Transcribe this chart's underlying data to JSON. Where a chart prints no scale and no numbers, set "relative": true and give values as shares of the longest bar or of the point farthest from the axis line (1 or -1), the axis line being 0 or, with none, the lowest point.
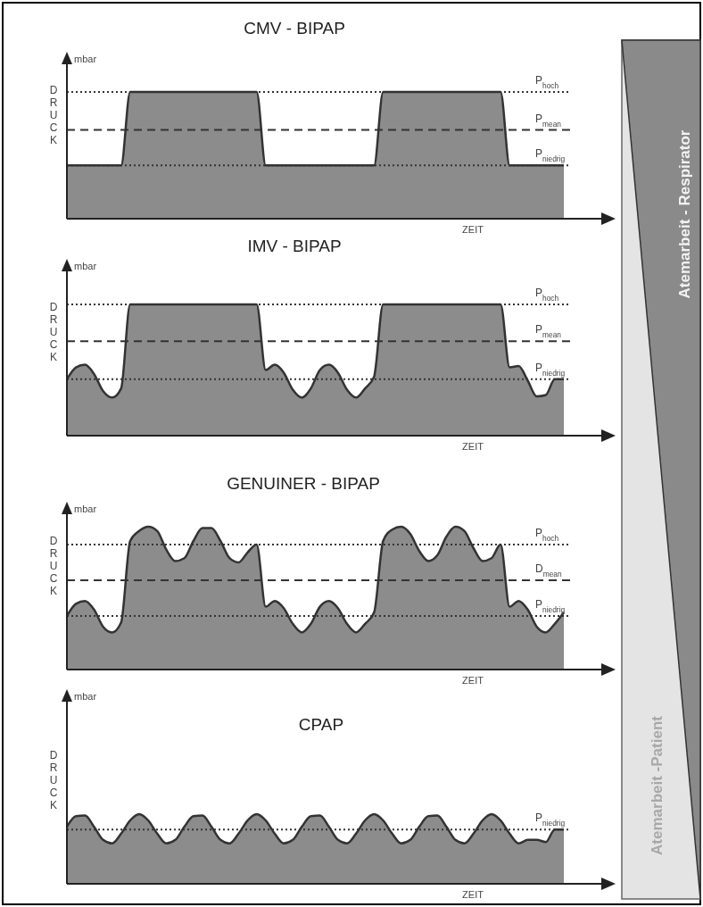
{
  "chart_data": [
    {
      "type": "area",
      "title": "CMV - BIPAP",
      "xlabel": "ZEIT",
      "ylabel": "DRUCK",
      "annotations": [
        "mbar"
      ],
      "relative": true,
      "categories": [
        null,
        null,
        null,
        null,
        null,
        null,
        null,
        null,
        null,
        null,
        null,
        null,
        null,
        null,
        null,
        null,
        null,
        null,
        null,
        null,
        null,
        null,
        null,
        null,
        null,
        null,
        null,
        null,
        null,
        null,
        null,
        null,
        null,
        null,
        null,
        null,
        null,
        null,
        null,
        null,
        null,
        null,
        null,
        null,
        null,
        null,
        null,
        null,
        null,
        null,
        null,
        null,
        null,
        null,
        null,
        null
      ],
      "series": [
        {
          "color": "#8c8c8c",
          "values": [
            0.42,
            0.42,
            0.42,
            0.42,
            0.42,
            0.42,
            0.42,
            1,
            1,
            1,
            1,
            1,
            1,
            1,
            1,
            1,
            1,
            1,
            1,
            1,
            1,
            1,
            0.42,
            0.42,
            0.42,
            0.42,
            0.42,
            0.42,
            0.42,
            0.42,
            0.42,
            0.42,
            0.42,
            0.42,
            0.42,
            1,
            1,
            1,
            1,
            1,
            1,
            1,
            1,
            1,
            1,
            1,
            1,
            1,
            1,
            0.42,
            0.42,
            0.42,
            0.42,
            0.42,
            0.42,
            0.42
          ]
        }
      ],
      "ref_lines": [
        {
          "axis": "y",
          "value": 1,
          "label": "P$_{hoch}$",
          "line_style": "dotted",
          "color": "#333333"
        },
        {
          "axis": "y",
          "value": 0.7,
          "label": "P$_{mean}$",
          "line_style": "dashed",
          "color": "#333333"
        },
        {
          "axis": "y",
          "value": 0.42,
          "label": "P$_{niedrig}$",
          "line_style": "dotted",
          "color": "#333333"
        }
      ]
    },
    {
      "type": "area",
      "title": "IMV - BIPAP",
      "xlabel": "ZEIT",
      "ylabel": "DRUCK",
      "annotations": [
        "mbar"
      ],
      "relative": true,
      "categories": [
        null,
        null,
        null,
        null,
        null,
        null,
        null,
        null,
        null,
        null,
        null,
        null,
        null,
        null,
        null,
        null,
        null,
        null,
        null,
        null,
        null,
        null,
        null,
        null,
        null,
        null,
        null,
        null,
        null,
        null,
        null,
        null,
        null,
        null,
        null,
        null,
        null,
        null,
        null,
        null,
        null,
        null,
        null,
        null,
        null,
        null,
        null,
        null,
        null,
        null,
        null,
        null,
        null,
        null,
        null,
        null
      ],
      "series": [
        {
          "color": "#8c8c8c",
          "values": [
            0.43,
            0.52,
            0.54,
            0.47,
            0.34,
            0.29,
            0.36,
            1,
            1,
            1,
            1,
            1,
            1,
            1,
            1,
            1,
            1,
            1,
            1,
            1,
            1,
            1,
            0.5,
            0.54,
            0.48,
            0.35,
            0.29,
            0.36,
            0.5,
            0.54,
            0.48,
            0.35,
            0.29,
            0.36,
            0.45,
            1,
            1,
            1,
            1,
            1,
            1,
            1,
            1,
            1,
            1,
            1,
            1,
            1,
            1,
            0.52,
            0.53,
            0.42,
            0.3,
            0.31,
            0.43,
            0.43
          ]
        }
      ],
      "ref_lines": [
        {
          "axis": "y",
          "value": 1,
          "label": "P$_{hoch}$",
          "line_style": "dotted",
          "color": "#333333"
        },
        {
          "axis": "y",
          "value": 0.72,
          "label": "P$_{mean}$",
          "line_style": "dashed",
          "color": "#333333"
        },
        {
          "axis": "y",
          "value": 0.43,
          "label": "P$_{niedrig}$",
          "line_style": "dotted",
          "color": "#333333"
        }
      ]
    },
    {
      "type": "area",
      "title": "GENUINER - BIPAP",
      "xlabel": "ZEIT",
      "ylabel": "DRUCK",
      "annotations": [
        "mbar"
      ],
      "relative": true,
      "categories": [
        null,
        null,
        null,
        null,
        null,
        null,
        null,
        null,
        null,
        null,
        null,
        null,
        null,
        null,
        null,
        null,
        null,
        null,
        null,
        null,
        null,
        null,
        null,
        null,
        null,
        null,
        null,
        null,
        null,
        null,
        null,
        null,
        null,
        null,
        null,
        null,
        null,
        null,
        null,
        null,
        null,
        null,
        null,
        null,
        null,
        null,
        null,
        null,
        null,
        null,
        null,
        null,
        null,
        null,
        null,
        null
      ],
      "series": [
        {
          "color": "#8c8c8c",
          "values": [
            0.375,
            0.46,
            0.48,
            0.42,
            0.3,
            0.26,
            0.33,
            0.9,
            0.97,
            1,
            0.97,
            0.84,
            0.76,
            0.78,
            0.9,
            0.99,
            0.99,
            0.9,
            0.78,
            0.75,
            0.82,
            0.875,
            0.44,
            0.48,
            0.43,
            0.32,
            0.26,
            0.32,
            0.44,
            0.48,
            0.43,
            0.32,
            0.26,
            0.32,
            0.4,
            0.9,
            0.98,
            1,
            0.95,
            0.83,
            0.76,
            0.8,
            0.93,
            1,
            0.97,
            0.85,
            0.76,
            0.78,
            0.875,
            0.44,
            0.48,
            0.42,
            0.3,
            0.26,
            0.32,
            0.4
          ]
        }
      ],
      "ref_lines": [
        {
          "axis": "y",
          "value": 0.875,
          "label": "P$_{hoch}$",
          "line_style": "dotted",
          "color": "#333333"
        },
        {
          "axis": "y",
          "value": 0.625,
          "label": "D$_{mean}$",
          "line_style": "dashed",
          "color": "#333333"
        },
        {
          "axis": "y",
          "value": 0.375,
          "label": "P$_{niedrig}$",
          "line_style": "dotted",
          "color": "#333333"
        }
      ]
    },
    {
      "type": "area",
      "title": "CPAP",
      "xlabel": "ZEIT",
      "ylabel": "DRUCK",
      "annotations": [
        "mbar"
      ],
      "relative": true,
      "categories": [
        null,
        null,
        null,
        null,
        null,
        null,
        null,
        null,
        null,
        null,
        null,
        null,
        null,
        null,
        null,
        null,
        null,
        null,
        null,
        null,
        null,
        null,
        null,
        null,
        null,
        null,
        null,
        null,
        null,
        null,
        null,
        null,
        null,
        null,
        null,
        null,
        null,
        null,
        null,
        null,
        null,
        null,
        null,
        null,
        null,
        null,
        null,
        null,
        null,
        null,
        null,
        null,
        null,
        null,
        null,
        null
      ],
      "series": [
        {
          "color": "#8c8c8c",
          "values": [
            0.82,
            0.97,
            0.98,
            0.82,
            0.63,
            0.58,
            0.72,
            0.91,
            1,
            0.91,
            0.72,
            0.58,
            0.63,
            0.82,
            0.97,
            0.98,
            0.82,
            0.63,
            0.58,
            0.72,
            0.91,
            1,
            0.91,
            0.72,
            0.58,
            0.63,
            0.82,
            0.97,
            0.98,
            0.82,
            0.63,
            0.58,
            0.72,
            0.91,
            1,
            0.91,
            0.72,
            0.58,
            0.63,
            0.82,
            0.97,
            0.98,
            0.82,
            0.63,
            0.58,
            0.72,
            0.91,
            1,
            0.91,
            0.72,
            0.58,
            0.63,
            0.63,
            0.6,
            0.78,
            0.78
          ]
        }
      ],
      "ref_lines": [
        {
          "axis": "y",
          "value": 0.78,
          "label": "P$_{niedrig}$",
          "line_style": "dotted",
          "color": "#333333"
        }
      ]
    },
    {
      "type": "other",
      "annotations": [
        "Atemarbeit - Respirator",
        "Atemarbeit -Patient"
      ]
    }
  ]
}
